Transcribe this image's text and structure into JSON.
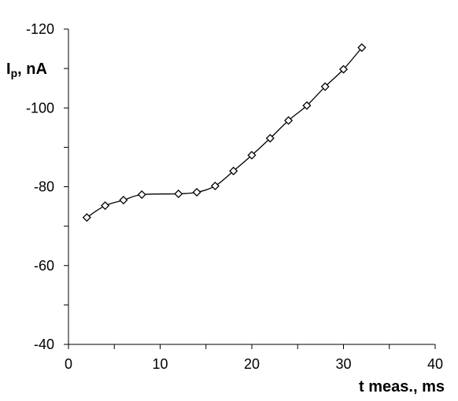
{
  "chart_data": {
    "type": "line",
    "xlabel": "t meas., ms",
    "ylabel": {
      "main": "I",
      "sub": "p",
      "suffix": ", nA"
    },
    "xlim": [
      0,
      40
    ],
    "ylim": [
      -40,
      -120
    ],
    "x_ticks": [
      0,
      10,
      20,
      30,
      40
    ],
    "y_ticks": [
      -40,
      -60,
      -80,
      -100,
      -120
    ],
    "grid": false,
    "legend": "none",
    "series": [
      {
        "marker": "diamond-open",
        "smooth": true,
        "color": "#000000",
        "x": [
          2,
          4,
          6,
          8,
          12,
          14,
          16,
          18,
          20,
          22,
          24,
          26,
          28,
          30,
          32
        ],
        "y": [
          -72.2,
          -75.2,
          -76.6,
          -78.0,
          -78.2,
          -78.6,
          -80.2,
          -84.0,
          -88.0,
          -92.3,
          -96.8,
          -100.6,
          -105.4,
          -109.8,
          -115.3
        ]
      }
    ]
  }
}
